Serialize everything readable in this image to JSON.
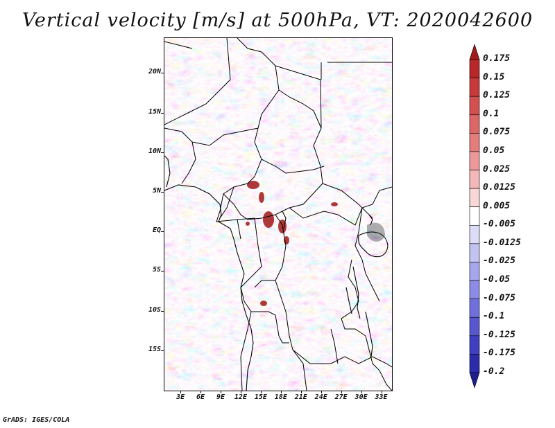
{
  "title": "Vertical velocity [m/s] at 500hPa, VT: 2020042600",
  "footer": "GrADS: IGES/COLA",
  "map": {
    "variable": "vertical velocity",
    "level": "500hPa",
    "valid_time": "2020042600",
    "lat_labels": [
      "20N",
      "15N",
      "10N",
      "5N",
      "EQ",
      "5S",
      "10S",
      "15S"
    ],
    "lat_values": [
      20,
      15,
      10,
      5,
      0,
      -5,
      -10,
      -15
    ],
    "lon_labels": [
      "3E",
      "6E",
      "9E",
      "12E",
      "15E",
      "18E",
      "21E",
      "24E",
      "27E",
      "30E",
      "33E"
    ],
    "lon_values": [
      3,
      6,
      9,
      12,
      15,
      18,
      21,
      24,
      27,
      30,
      33
    ],
    "lat_range": [
      -20,
      24.5
    ],
    "lon_range": [
      0.5,
      34.5
    ]
  },
  "colorbar": {
    "labels": [
      "0.175",
      "0.15",
      "0.125",
      "0.1",
      "0.075",
      "0.05",
      "0.025",
      "0.0125",
      "0.005",
      "-0.005",
      "-0.0125",
      "-0.025",
      "-0.05",
      "-0.075",
      "-0.1",
      "-0.125",
      "-0.175",
      "-0.2"
    ],
    "colors": [
      "#a11b1b",
      "#b82828",
      "#c83a3a",
      "#d45050",
      "#dd6666",
      "#e57d7d",
      "#ee9999",
      "#f4b8b8",
      "#f9d7d7",
      "#ffffff",
      "#dcdcf7",
      "#c3c3f2",
      "#a6a6ec",
      "#8c8ce6",
      "#7070dc",
      "#5757cf",
      "#3f3fbf",
      "#2c2caa",
      "#1e1e8c"
    ]
  }
}
